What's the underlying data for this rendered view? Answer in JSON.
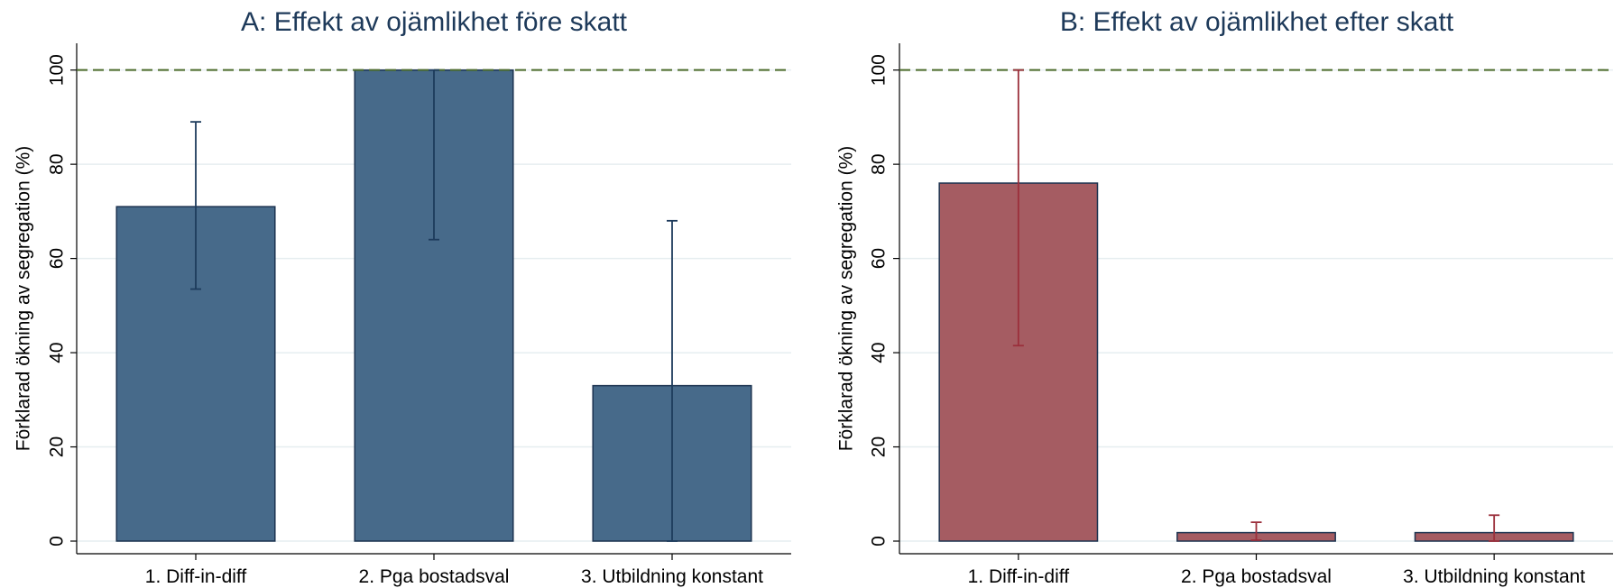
{
  "chart_data": [
    {
      "type": "bar",
      "title": "A: Effekt av ojämlikhet före skatt",
      "ylabel": "Förklarad ökning av segregation (%)",
      "xlabel": "",
      "categories": [
        "1. Diff-in-diff",
        "2. Pga bostadsval",
        "3. Utbildning konstant"
      ],
      "values": [
        71,
        100,
        33
      ],
      "error_low": [
        53.5,
        64,
        0
      ],
      "error_high": [
        89,
        100,
        68
      ],
      "yticks": [
        0,
        20,
        40,
        60,
        80,
        100
      ],
      "ylim": [
        0,
        103
      ],
      "reference_line": 100,
      "grid": true,
      "bar_color": "#476a8a",
      "error_color": "#1d3b5c"
    },
    {
      "type": "bar",
      "title": "B: Effekt av ojämlikhet efter skatt",
      "ylabel": "Förklarad ökning av segregation (%)",
      "xlabel": "",
      "categories": [
        "1. Diff-in-diff",
        "2. Pga bostadsval",
        "3. Utbildning konstant"
      ],
      "values": [
        76,
        1.8,
        1.8
      ],
      "error_low": [
        41.5,
        0.2,
        0
      ],
      "error_high": [
        100,
        4,
        5.5
      ],
      "yticks": [
        0,
        20,
        40,
        60,
        80,
        100
      ],
      "ylim": [
        0,
        103
      ],
      "reference_line": 100,
      "grid": true,
      "bar_color": "#a55c62",
      "error_color": "#9b2f3b"
    }
  ],
  "colors": {
    "title": "#1e3a5a",
    "grid": "#e6eef0",
    "reference_line": "#4a6a2a",
    "axis": "#000000",
    "bar_outline": "#1c3350"
  }
}
